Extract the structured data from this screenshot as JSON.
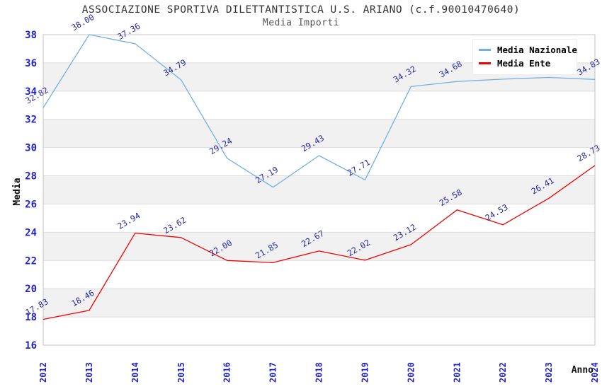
{
  "header": {
    "title": "ASSOCIAZIONE SPORTIVA DILETTANTISTICA U.S. ARIANO (c.f.90010470640)",
    "subtitle": "Media Importi"
  },
  "legend": {
    "items": [
      {
        "label": "Media Nazionale",
        "color": "#74b0e4"
      },
      {
        "label": "Media Ente",
        "color": "#f20000"
      }
    ]
  },
  "colors": {
    "nazionale_line": "#74b0e4",
    "ente_line": "#f20000",
    "tick_label": "#2222cc",
    "data_label": "#28289a",
    "band_fill": "#f1f1f1",
    "gridline": "#dcdcdc",
    "plot_border": "#c4c4c4",
    "axis_title": "#111111"
  },
  "chart_data": {
    "type": "line",
    "title": "ASSOCIAZIONE SPORTIVA DILETTANTISTICA U.S. ARIANO (c.f.90010470640)",
    "subtitle": "Media Importi",
    "xlabel": "Anno",
    "ylabel": "Media",
    "x": [
      2012,
      2013,
      2014,
      2015,
      2016,
      2017,
      2018,
      2019,
      2020,
      2021,
      2022,
      2023,
      2024
    ],
    "x_tick_labels": [
      "2012",
      "2013",
      "2014",
      "2015",
      "2016",
      "2017",
      "2018",
      "2019",
      "2020",
      "2021",
      "2022",
      "2023",
      "2024"
    ],
    "y_ticks": [
      16,
      18,
      20,
      22,
      24,
      26,
      28,
      30,
      32,
      34,
      36,
      38
    ],
    "ylim": [
      16,
      38
    ],
    "grid": "horizontal-lines-with-alternating-bands",
    "legend_position": "top-right-inside",
    "series": [
      {
        "name": "Media Nazionale",
        "color": "#74b0e4",
        "values": [
          32.82,
          38.0,
          37.36,
          34.79,
          29.24,
          27.19,
          29.43,
          27.71,
          34.32,
          34.68,
          34.85,
          34.97,
          34.83
        ],
        "point_labels": [
          "32.82",
          "38.00",
          "37.36",
          "34.79",
          "29.24",
          "27.19",
          "29.43",
          "27.71",
          "34.32",
          "34.68",
          "34.85",
          "34.97",
          "34.83"
        ],
        "note": "2022 and 2023 point labels are hidden behind the legend box; their values are estimated from the line position"
      },
      {
        "name": "Media Ente",
        "color": "#f20000",
        "values": [
          17.83,
          18.46,
          23.94,
          23.62,
          22.0,
          21.85,
          22.67,
          22.02,
          23.12,
          25.58,
          24.53,
          26.41,
          28.73
        ],
        "point_labels": [
          "17.83",
          "18.46",
          "23.94",
          "23.62",
          "22.00",
          "21.85",
          "22.67",
          "22.02",
          "23.12",
          "25.58",
          "24.53",
          "26.41",
          "28.73"
        ]
      }
    ]
  }
}
